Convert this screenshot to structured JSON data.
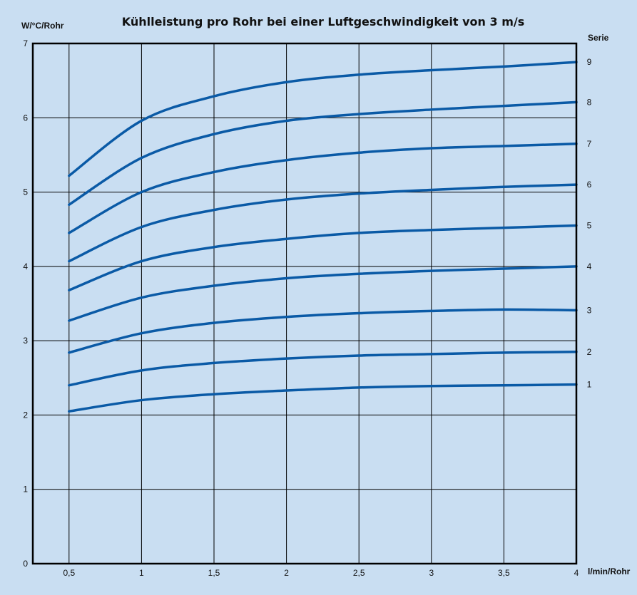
{
  "chart_data": {
    "type": "line",
    "title": "Kühlleistung pro Rohr bei einer Luftgeschwindigkeit von 3 m/s",
    "ylabel": "W/°C/Rohr",
    "xlabel": "l/min/Rohr",
    "legend_title": "Serie",
    "xlim": [
      0.25,
      4
    ],
    "ylim": [
      0,
      7
    ],
    "x_ticks": [
      0.5,
      1,
      1.5,
      2,
      2.5,
      3,
      3.5,
      4
    ],
    "x_tick_labels": [
      "0,5",
      "1",
      "1,5",
      "2",
      "2,5",
      "3",
      "3,5",
      "4"
    ],
    "y_ticks": [
      0,
      1,
      2,
      3,
      4,
      5,
      6,
      7
    ],
    "y_tick_labels": [
      "0",
      "1",
      "2",
      "3",
      "4",
      "5",
      "6",
      "7"
    ],
    "grid": true,
    "line_color": "#0a5aa6",
    "x": [
      0.5,
      1,
      1.5,
      2,
      2.5,
      3,
      3.5,
      4
    ],
    "series": [
      {
        "name": "1",
        "values": [
          2.05,
          2.2,
          2.28,
          2.33,
          2.37,
          2.39,
          2.4,
          2.41
        ]
      },
      {
        "name": "2",
        "values": [
          2.4,
          2.6,
          2.7,
          2.76,
          2.8,
          2.82,
          2.84,
          2.85
        ]
      },
      {
        "name": "3",
        "values": [
          2.84,
          3.1,
          3.24,
          3.32,
          3.37,
          3.4,
          3.42,
          3.41
        ]
      },
      {
        "name": "4",
        "values": [
          3.27,
          3.58,
          3.74,
          3.84,
          3.9,
          3.94,
          3.97,
          4.0
        ]
      },
      {
        "name": "5",
        "values": [
          3.68,
          4.07,
          4.26,
          4.37,
          4.45,
          4.49,
          4.52,
          4.55
        ]
      },
      {
        "name": "6",
        "values": [
          4.07,
          4.53,
          4.76,
          4.9,
          4.98,
          5.03,
          5.07,
          5.1
        ]
      },
      {
        "name": "7",
        "values": [
          4.45,
          5.0,
          5.27,
          5.43,
          5.53,
          5.59,
          5.62,
          5.65
        ]
      },
      {
        "name": "8",
        "values": [
          4.83,
          5.46,
          5.78,
          5.96,
          6.05,
          6.11,
          6.16,
          6.21
        ]
      },
      {
        "name": "9",
        "values": [
          5.22,
          5.96,
          6.29,
          6.48,
          6.58,
          6.64,
          6.69,
          6.75
        ]
      }
    ]
  }
}
